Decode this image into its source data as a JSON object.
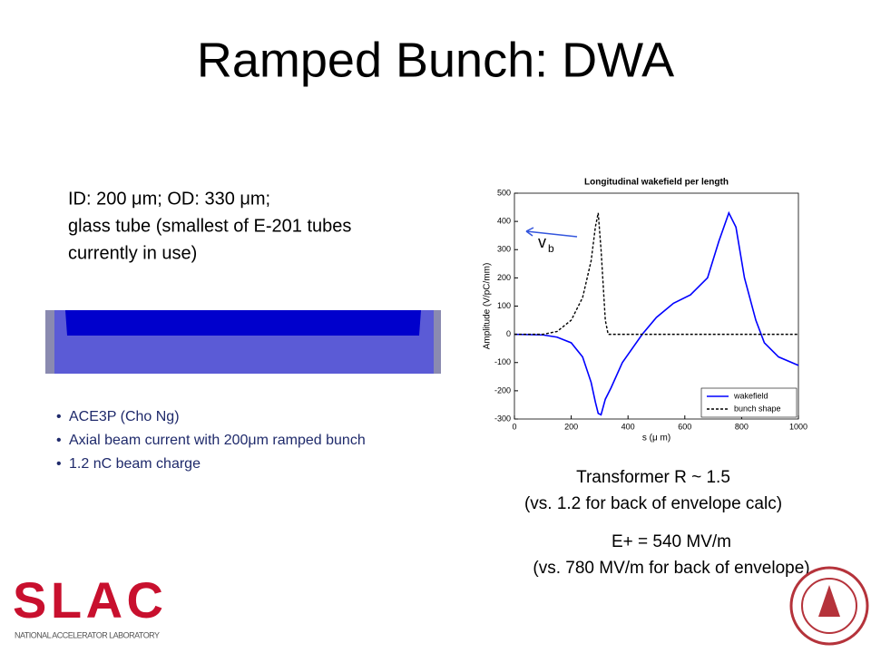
{
  "title": "Ramped Bunch: DWA",
  "description": [
    "ID:  200 μm;  OD: 330 μm;",
    "glass tube (smallest of E-201 tubes",
    "currently in use)"
  ],
  "bullets": [
    "ACE3P (Cho Ng)",
    "Axial beam current with 200μm ramped bunch",
    "1.2 nC beam charge"
  ],
  "notes": [
    "Transformer R ~ 1.5",
    "(vs. 1.2 for back of envelope calc)",
    "E+ = 540 MV/m",
    "(vs. 780 MV/m for back of envelope)"
  ],
  "logo": {
    "name": "SLAC",
    "subtitle": "NATIONAL ACCELERATOR LABORATORY"
  },
  "chart_data": {
    "type": "line",
    "title": "Longitudinal wakefield per length",
    "xlabel": "s (μ m)",
    "ylabel": "Amplitude (V/pC/mm)",
    "annotation": {
      "text": "v",
      "subscript": "b"
    },
    "x": [
      0,
      100,
      150,
      200,
      240,
      270,
      285,
      295,
      305,
      320,
      330,
      340,
      380,
      450,
      500,
      560,
      620,
      680,
      720,
      755,
      780,
      810,
      850,
      880,
      930,
      1000
    ],
    "series": [
      {
        "name": "wakefield",
        "color": "#0000ff",
        "dash": false,
        "values": [
          0,
          -2,
          -10,
          -30,
          -80,
          -170,
          -240,
          -280,
          -285,
          -230,
          -210,
          -190,
          -100,
          0,
          60,
          110,
          140,
          200,
          330,
          430,
          380,
          200,
          50,
          -30,
          -80,
          -110
        ]
      },
      {
        "name": "bunch shape",
        "color": "#000000",
        "dash": true,
        "values": [
          0,
          0,
          10,
          50,
          130,
          260,
          380,
          430,
          300,
          50,
          0,
          0,
          0,
          0,
          0,
          0,
          0,
          0,
          0,
          0,
          0,
          0,
          0,
          0,
          0,
          0
        ]
      }
    ],
    "xlim": [
      0,
      1000
    ],
    "xticks": [
      0,
      200,
      400,
      600,
      800,
      1000
    ],
    "ylim": [
      -300,
      500
    ],
    "yticks": [
      -300,
      -200,
      -100,
      0,
      100,
      200,
      300,
      400,
      500
    ],
    "legend": "lower right"
  }
}
